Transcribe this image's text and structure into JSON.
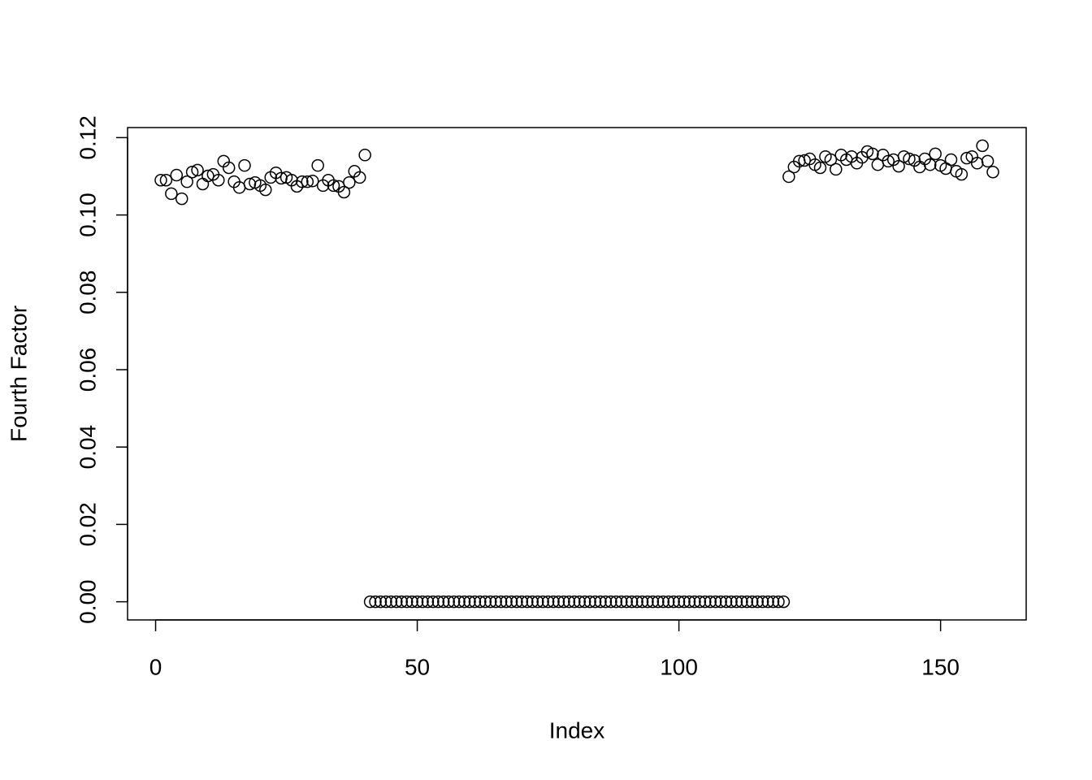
{
  "chart_data": {
    "type": "scatter",
    "x_label": "Index",
    "y_label": "Fourth Factor",
    "x": [
      1,
      2,
      3,
      4,
      5,
      6,
      7,
      8,
      9,
      10,
      11,
      12,
      13,
      14,
      15,
      16,
      17,
      18,
      19,
      20,
      21,
      22,
      23,
      24,
      25,
      26,
      27,
      28,
      29,
      30,
      31,
      32,
      33,
      34,
      35,
      36,
      37,
      38,
      39,
      40,
      41,
      42,
      43,
      44,
      45,
      46,
      47,
      48,
      49,
      50,
      51,
      52,
      53,
      54,
      55,
      56,
      57,
      58,
      59,
      60,
      61,
      62,
      63,
      64,
      65,
      66,
      67,
      68,
      69,
      70,
      71,
      72,
      73,
      74,
      75,
      76,
      77,
      78,
      79,
      80,
      81,
      82,
      83,
      84,
      85,
      86,
      87,
      88,
      89,
      90,
      91,
      92,
      93,
      94,
      95,
      96,
      97,
      98,
      99,
      100,
      101,
      102,
      103,
      104,
      105,
      106,
      107,
      108,
      109,
      110,
      111,
      112,
      113,
      114,
      115,
      116,
      117,
      118,
      119,
      120,
      121,
      122,
      123,
      124,
      125,
      126,
      127,
      128,
      129,
      130,
      131,
      132,
      133,
      134,
      135,
      136,
      137,
      138,
      139,
      140,
      141,
      142,
      143,
      144,
      145,
      146,
      147,
      148,
      149,
      150,
      151,
      152,
      153,
      154,
      155,
      156,
      157,
      158,
      159,
      160
    ],
    "values": [
      0.109,
      0.109,
      0.1055,
      0.1103,
      0.1042,
      0.1086,
      0.1111,
      0.1116,
      0.108,
      0.1101,
      0.1105,
      0.109,
      0.1139,
      0.1122,
      0.1086,
      0.1071,
      0.1128,
      0.108,
      0.1084,
      0.1076,
      0.1065,
      0.1097,
      0.1109,
      0.1095,
      0.1097,
      0.109,
      0.1074,
      0.1086,
      0.1086,
      0.1088,
      0.1128,
      0.1076,
      0.109,
      0.1076,
      0.1074,
      0.1059,
      0.1084,
      0.1113,
      0.1097,
      0.1155,
      0,
      0,
      0,
      0,
      0,
      0,
      0,
      0,
      0,
      0,
      0,
      0,
      0,
      0,
      0,
      0,
      0,
      0,
      0,
      0,
      0,
      0,
      0,
      0,
      0,
      0,
      0,
      0,
      0,
      0,
      0,
      0,
      0,
      0,
      0,
      0,
      0,
      0,
      0,
      0,
      0,
      0,
      0,
      0,
      0,
      0,
      0,
      0,
      0,
      0,
      0,
      0,
      0,
      0,
      0,
      0,
      0,
      0,
      0,
      0,
      0,
      0,
      0,
      0,
      0,
      0,
      0,
      0,
      0,
      0,
      0,
      0,
      0,
      0,
      0,
      0,
      0,
      0,
      0,
      0,
      0.1099,
      0.1124,
      0.1139,
      0.1141,
      0.1145,
      0.113,
      0.1122,
      0.1151,
      0.1143,
      0.1118,
      0.1155,
      0.1143,
      0.1151,
      0.1134,
      0.1149,
      0.1164,
      0.1158,
      0.113,
      0.1155,
      0.1139,
      0.1143,
      0.1126,
      0.1151,
      0.1145,
      0.1141,
      0.1124,
      0.1145,
      0.113,
      0.1158,
      0.1128,
      0.112,
      0.1143,
      0.1113,
      0.1105,
      0.1147,
      0.1151,
      0.1134,
      0.1179,
      0.1139,
      0.1111
    ],
    "color": "#000000",
    "xlim": [
      -5.36,
      166.36
    ],
    "ylim": [
      -0.0047,
      0.1226
    ],
    "xticks": [
      0,
      50,
      100,
      150
    ],
    "yticks": [
      {
        "value": 0,
        "label": "0.00"
      },
      0.02,
      0.04,
      0.06,
      0.08,
      {
        "value": 0.1,
        "label": "0.10"
      },
      0.12
    ]
  }
}
